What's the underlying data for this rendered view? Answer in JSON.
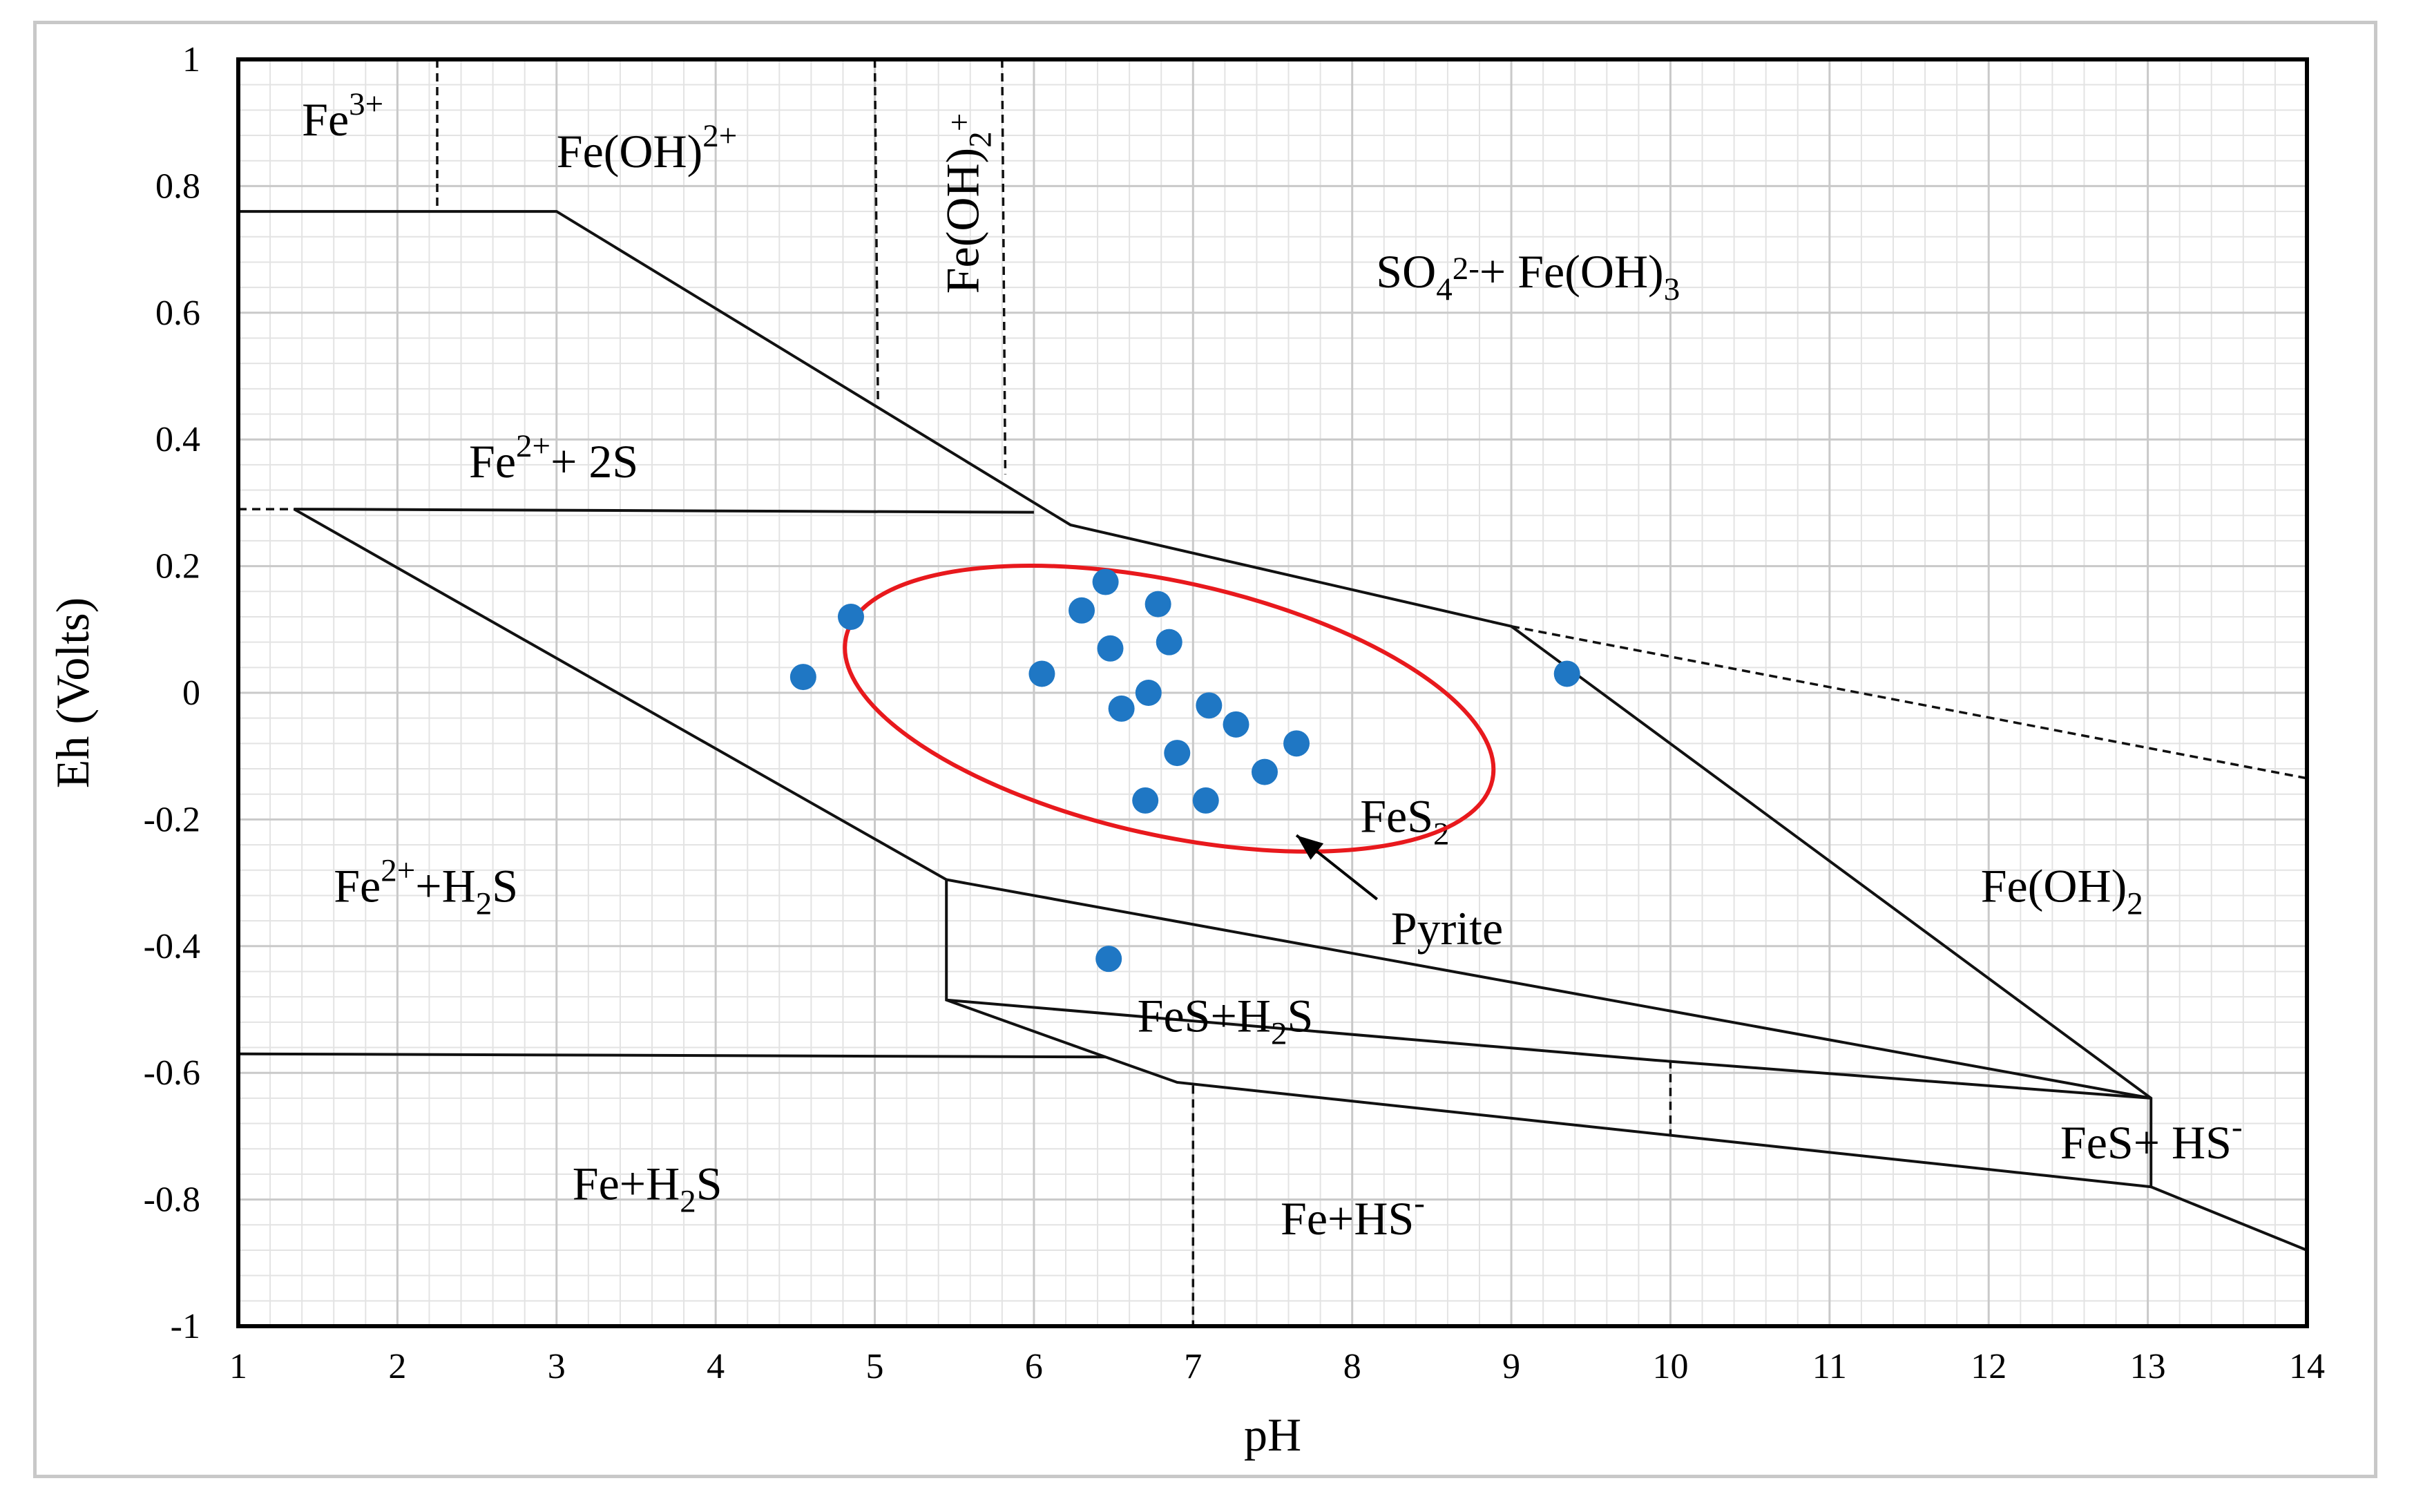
{
  "chart_data": {
    "type": "scatter",
    "title": "",
    "xlabel": "pH",
    "ylabel": "Eh (Volts)",
    "xlim": [
      1,
      14
    ],
    "ylim": [
      -1,
      1
    ],
    "x_major_ticks": [
      1,
      2,
      3,
      4,
      5,
      6,
      7,
      8,
      9,
      10,
      11,
      12,
      13,
      14
    ],
    "y_major_ticks": [
      1,
      0.8,
      0.6,
      0.4,
      0.2,
      0,
      -0.2,
      -0.4,
      -0.6,
      -0.8,
      -1
    ],
    "x_tick_labels": [
      "1",
      "2",
      "3",
      "4",
      "5",
      "6",
      "7",
      "8",
      "9",
      "10",
      "11",
      "12",
      "13",
      "14"
    ],
    "y_tick_labels": [
      "1",
      "0.8",
      "0.6",
      "0.4",
      "0.2",
      "0",
      "-0.2",
      "-0.4",
      "-0.6",
      "-0.8",
      "-1"
    ],
    "minor_divisions": 5,
    "grid": true,
    "marker_color": "#1f77c4",
    "ellipse_color": "#e8191d",
    "points": [
      {
        "x": 4.55,
        "y": 0.025
      },
      {
        "x": 4.85,
        "y": 0.12
      },
      {
        "x": 6.05,
        "y": 0.03
      },
      {
        "x": 6.3,
        "y": 0.13
      },
      {
        "x": 6.45,
        "y": 0.175
      },
      {
        "x": 6.48,
        "y": 0.07
      },
      {
        "x": 6.78,
        "y": 0.14
      },
      {
        "x": 6.85,
        "y": 0.08
      },
      {
        "x": 6.72,
        "y": 0.0
      },
      {
        "x": 6.55,
        "y": -0.025
      },
      {
        "x": 7.1,
        "y": -0.02
      },
      {
        "x": 7.27,
        "y": -0.05
      },
      {
        "x": 6.9,
        "y": -0.095
      },
      {
        "x": 7.45,
        "y": -0.125
      },
      {
        "x": 7.65,
        "y": -0.08
      },
      {
        "x": 6.7,
        "y": -0.17
      },
      {
        "x": 7.08,
        "y": -0.17
      },
      {
        "x": 9.35,
        "y": 0.03
      },
      {
        "x": 6.47,
        "y": -0.42
      }
    ],
    "ellipse": {
      "cx": 6.85,
      "cy": -0.025,
      "rx": 2.08,
      "ry": 0.2,
      "angle_deg": -12.5
    },
    "annotation": {
      "text": "Pyrite",
      "x": 8.2,
      "y": -0.375,
      "arrow_to_x": 7.65,
      "arrow_to_y": -0.225
    },
    "boundaries_solid": [
      [
        [
          1,
          0.76
        ],
        [
          3.0,
          0.76
        ],
        [
          6.23,
          0.265
        ],
        [
          9.0,
          0.105
        ],
        [
          13.02,
          -0.64
        ],
        [
          13.02,
          -0.78
        ],
        [
          14,
          -0.88
        ]
      ],
      [
        [
          1.35,
          0.29
        ],
        [
          6.0,
          0.285
        ]
      ],
      [
        [
          1.35,
          0.29
        ],
        [
          5.45,
          -0.295
        ],
        [
          13.02,
          -0.64
        ]
      ],
      [
        [
          5.45,
          -0.295
        ],
        [
          5.45,
          -0.485
        ],
        [
          6.45,
          -0.575
        ],
        [
          6.9,
          -0.615
        ],
        [
          13.02,
          -0.78
        ]
      ],
      [
        [
          5.45,
          -0.485
        ],
        [
          9.9,
          -0.58
        ],
        [
          13.02,
          -0.64
        ]
      ],
      [
        [
          1,
          -0.57
        ],
        [
          6.45,
          -0.575
        ]
      ]
    ],
    "boundaries_dashed": [
      [
        [
          1,
          0.29
        ],
        [
          1.35,
          0.29
        ]
      ],
      [
        [
          2.25,
          1
        ],
        [
          2.25,
          0.76
        ]
      ],
      [
        [
          5.0,
          1
        ],
        [
          5.02,
          0.455
        ]
      ],
      [
        [
          5.8,
          1
        ],
        [
          5.82,
          0.345
        ]
      ],
      [
        [
          9.0,
          0.105
        ],
        [
          14,
          -0.135
        ]
      ],
      [
        [
          10.0,
          -0.58
        ],
        [
          10.0,
          -0.7
        ]
      ],
      [
        [
          7.0,
          -0.62
        ],
        [
          7.0,
          -1
        ]
      ]
    ],
    "regions": [
      {
        "label": "Fe",
        "sup": "3+",
        "sub": "",
        "tail": "",
        "x": 1.4,
        "y": 0.88
      },
      {
        "label": "Fe(OH)",
        "sup": "2+",
        "sub": "",
        "tail": "",
        "x": 3.0,
        "y": 0.83
      },
      {
        "label": "Fe(OH)",
        "sup": "+",
        "sub": "2",
        "tail": "",
        "x": 5.65,
        "y": 0.63,
        "rotate": -90
      },
      {
        "label": "SO",
        "sup": "2-",
        "sub": "4",
        "tail": "+ Fe(OH)",
        "tail_sub": "3",
        "x": 8.15,
        "y": 0.64
      },
      {
        "label": "Fe",
        "sup": "2+",
        "sub": "",
        "tail": "+ 2S",
        "x": 2.45,
        "y": 0.34
      },
      {
        "label": "FeS",
        "sup": "",
        "sub": "2",
        "tail": "",
        "x": 8.05,
        "y": -0.22
      },
      {
        "label": "Fe(OH)",
        "sup": "",
        "sub": "2",
        "tail": "",
        "x": 11.95,
        "y": -0.33
      },
      {
        "label": "Fe",
        "sup": "2+",
        "sub": "",
        "tail": "+H",
        "tail_sub": "2",
        "tail2": "S",
        "x": 1.6,
        "y": -0.33
      },
      {
        "label": "FeS+H",
        "sup": "",
        "sub": "2",
        "tail": "S",
        "x": 6.65,
        "y": -0.535
      },
      {
        "label": "FeS+ HS",
        "sup": "-",
        "sub": "",
        "tail": "",
        "x": 12.45,
        "y": -0.735
      },
      {
        "label": "Fe+H",
        "sup": "",
        "sub": "2",
        "tail": "S",
        "x": 3.1,
        "y": -0.8
      },
      {
        "label": "Fe+HS",
        "sup": "-",
        "sub": "",
        "tail": "",
        "x": 7.55,
        "y": -0.855
      }
    ]
  }
}
